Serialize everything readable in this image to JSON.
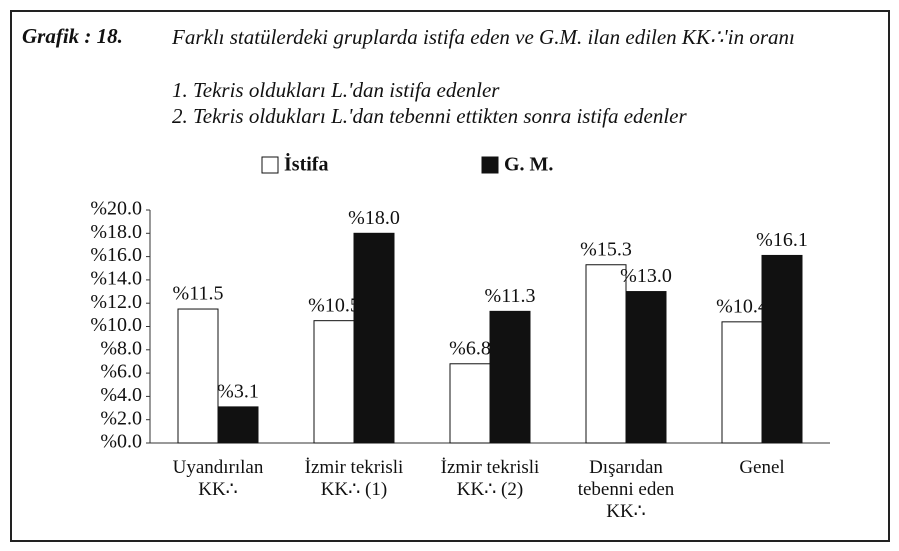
{
  "chart_data": {
    "type": "bar",
    "label": "Grafik : 18.",
    "title": "Farklı statülerdeki gruplarda istifa eden ve G.M. ilan edilen KK∴'in oranı",
    "notes": [
      "1. Tekris oldukları L.'dan istifa edenler",
      "2. Tekris oldukları L.'dan tebenni ettikten sonra istifa edenler"
    ],
    "categories": [
      "Uyandırılan\nKK∴",
      "İzmir tekrisli\nKK∴ (1)",
      "İzmir tekrisli\nKK∴ (2)",
      "Dışarıdan\ntebenni eden\nKK∴",
      "Genel"
    ],
    "series": [
      {
        "name": "İstifa",
        "color": "#ffffff",
        "values": [
          11.5,
          10.5,
          6.8,
          15.3,
          10.4
        ],
        "value_labels": [
          "%11.5",
          "%10.5",
          "%6.8",
          "%15.3",
          "%10.4"
        ]
      },
      {
        "name": "G. M.",
        "color": "#111111",
        "values": [
          3.1,
          18.0,
          11.3,
          13.0,
          16.1
        ],
        "value_labels": [
          "%3.1",
          "%18.0",
          "%11.3",
          "%13.0",
          "%16.1"
        ]
      }
    ],
    "ylim": [
      0,
      20
    ],
    "yticks": [
      {
        "value": 0,
        "label": "%0.0"
      },
      {
        "value": 2,
        "label": "%2.0"
      },
      {
        "value": 4,
        "label": "%4.0"
      },
      {
        "value": 6,
        "label": "%6.0"
      },
      {
        "value": 8,
        "label": "%8.0"
      },
      {
        "value": 10,
        "label": "%10.0"
      },
      {
        "value": 12,
        "label": "%12.0"
      },
      {
        "value": 14,
        "label": "%14.0"
      },
      {
        "value": 16,
        "label": "%16.0"
      },
      {
        "value": 18,
        "label": "%18.0"
      },
      {
        "value": 20,
        "label": "%20.0"
      }
    ],
    "legend": "top"
  }
}
